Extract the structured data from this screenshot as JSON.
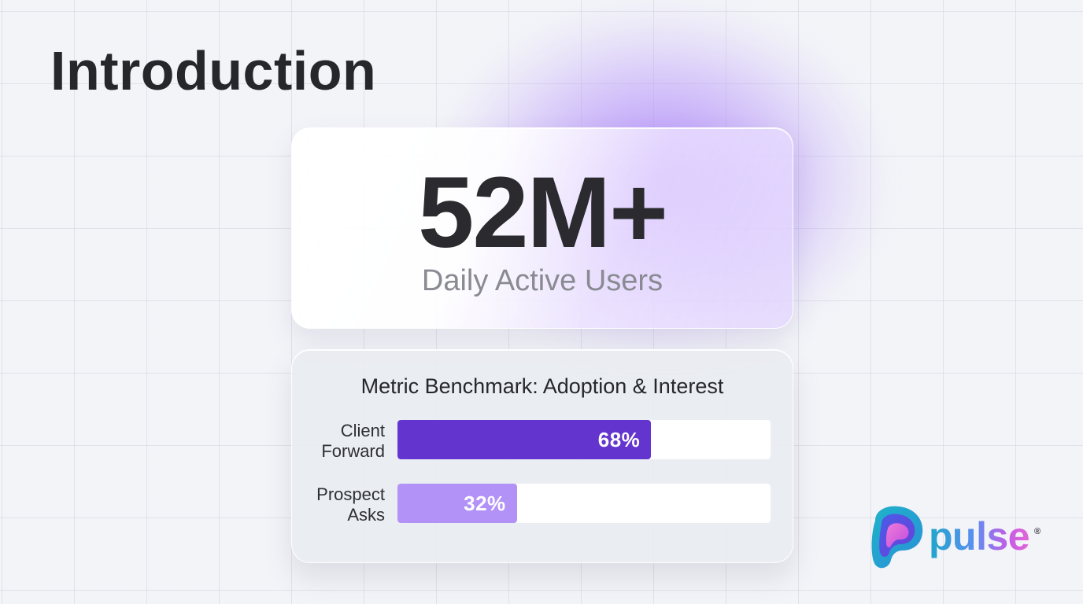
{
  "slide": {
    "title": "Introduction"
  },
  "hero": {
    "value": "52M+",
    "label": "Daily Active Users"
  },
  "benchmark": {
    "title": "Metric Benchmark: Adoption & Interest",
    "bars": [
      {
        "label": "Client\nForward",
        "display": "68%",
        "percent": 68,
        "color": "#6434cf"
      },
      {
        "label": "Prospect\nAsks",
        "display": "32%",
        "percent": 32,
        "color": "#b392f7"
      }
    ]
  },
  "logo": {
    "text": "pulse",
    "registered_mark": "®",
    "icon": "pulse-logo-icon",
    "colors": [
      "#1fa6c9",
      "#6a5cf0",
      "#e064d8"
    ]
  },
  "theme": {
    "accent": "#6434cf",
    "accent_light": "#b392f7",
    "glow": "#a478fa"
  }
}
